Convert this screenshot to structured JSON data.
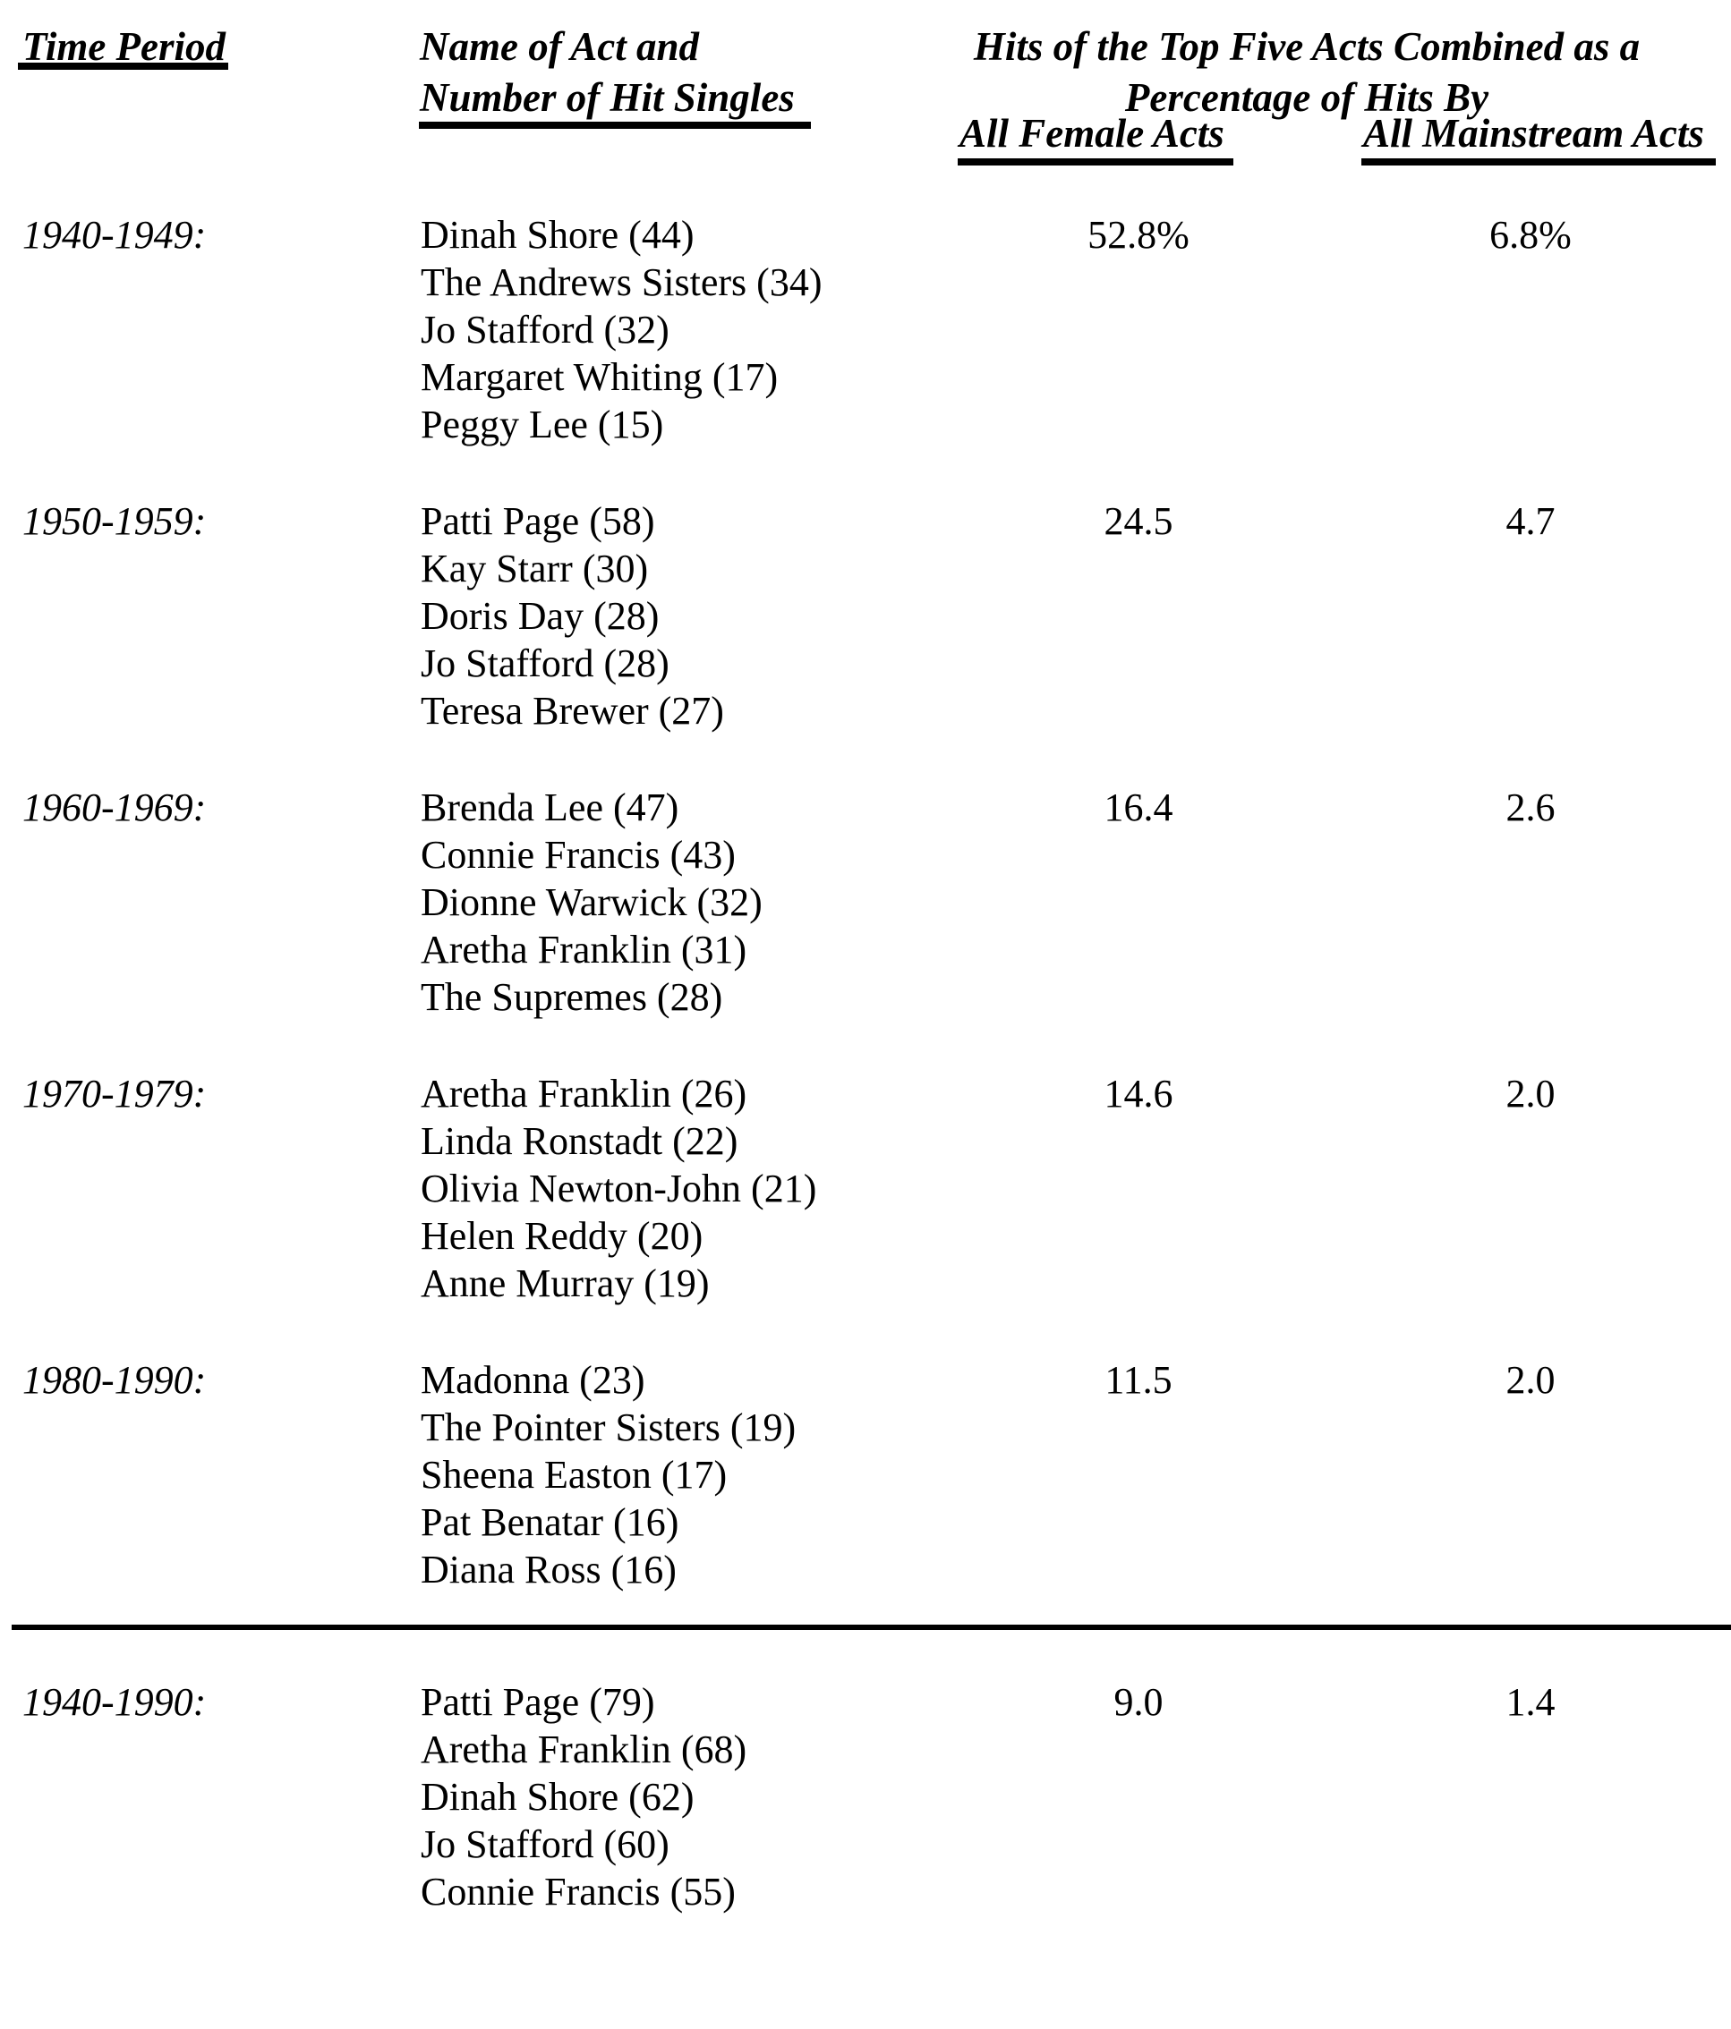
{
  "table": {
    "headers": {
      "time_period": "Time Period",
      "act_line1": "Name of Act and",
      "act_line2": "Number of Hit Singles",
      "group_line1": "Hits of the Top Five Acts Combined as a",
      "group_line2": "Percentage of Hits By",
      "col_female": "All Female Acts",
      "col_mainstream": "All Mainstream Acts"
    },
    "rows": [
      {
        "period": "1940-1949:",
        "acts": [
          "Dinah Shore (44)",
          "The Andrews Sisters (34)",
          "Jo Stafford (32)",
          "Margaret Whiting (17)",
          "Peggy Lee (15)"
        ],
        "female": "52.8%",
        "mainstream": "6.8%"
      },
      {
        "period": "1950-1959:",
        "acts": [
          "Patti Page (58)",
          "Kay Starr (30)",
          "Doris Day (28)",
          "Jo Stafford (28)",
          "Teresa Brewer (27)"
        ],
        "female": "24.5",
        "mainstream": "4.7"
      },
      {
        "period": "1960-1969:",
        "acts": [
          "Brenda Lee (47)",
          "Connie Francis (43)",
          "Dionne Warwick (32)",
          "Aretha Franklin (31)",
          "The Supremes (28)"
        ],
        "female": "16.4",
        "mainstream": "2.6"
      },
      {
        "period": "1970-1979:",
        "acts": [
          "Aretha Franklin (26)",
          "Linda Ronstadt (22)",
          "Olivia Newton-John (21)",
          "Helen Reddy (20)",
          "Anne Murray (19)"
        ],
        "female": "14.6",
        "mainstream": "2.0"
      },
      {
        "period": "1980-1990:",
        "acts": [
          "Madonna (23)",
          "The Pointer Sisters (19)",
          "Sheena Easton (17)",
          "Pat Benatar (16)",
          "Diana Ross (16)"
        ],
        "female": "11.5",
        "mainstream": "2.0"
      },
      {
        "period": "1940-1990:",
        "acts": [
          "Patti Page (79)",
          "Aretha Franklin (68)",
          "Dinah Shore (62)",
          "Jo Stafford (60)",
          "Connie Francis (55)"
        ],
        "female": "9.0",
        "mainstream": "1.4"
      }
    ]
  }
}
